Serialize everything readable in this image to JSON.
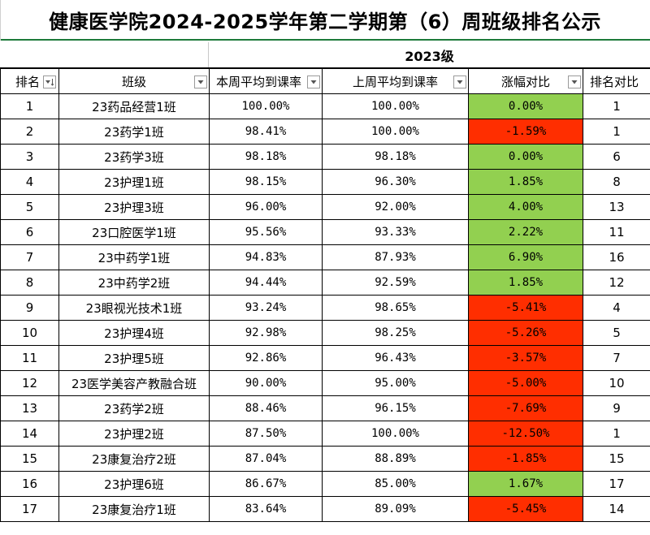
{
  "title": "健康医学院2024-2025学年第二学期第（6）周班级排名公示",
  "grade_label": "2023级",
  "colors": {
    "increase": "#92d050",
    "decrease": "#ff2e00",
    "border": "#000000",
    "title_underline": "#1d7a3a"
  },
  "headers": [
    "排名",
    "班级",
    "本周平均到课率",
    "上周平均到课率",
    "涨幅对比",
    "排名对比"
  ],
  "rows": [
    {
      "rank": "1",
      "class": "23药品经营1班",
      "this_week": "100.00%",
      "last_week": "100.00%",
      "change": "0.00%",
      "trend": "pos",
      "rank_cmp": "1"
    },
    {
      "rank": "2",
      "class": "23药学1班",
      "this_week": "98.41%",
      "last_week": "100.00%",
      "change": "-1.59%",
      "trend": "neg",
      "rank_cmp": "1"
    },
    {
      "rank": "3",
      "class": "23药学3班",
      "this_week": "98.18%",
      "last_week": "98.18%",
      "change": "0.00%",
      "trend": "pos",
      "rank_cmp": "6"
    },
    {
      "rank": "4",
      "class": "23护理1班",
      "this_week": "98.15%",
      "last_week": "96.30%",
      "change": "1.85%",
      "trend": "pos",
      "rank_cmp": "8"
    },
    {
      "rank": "5",
      "class": "23护理3班",
      "this_week": "96.00%",
      "last_week": "92.00%",
      "change": "4.00%",
      "trend": "pos",
      "rank_cmp": "13"
    },
    {
      "rank": "6",
      "class": "23口腔医学1班",
      "this_week": "95.56%",
      "last_week": "93.33%",
      "change": "2.22%",
      "trend": "pos",
      "rank_cmp": "11"
    },
    {
      "rank": "7",
      "class": "23中药学1班",
      "this_week": "94.83%",
      "last_week": "87.93%",
      "change": "6.90%",
      "trend": "pos",
      "rank_cmp": "16"
    },
    {
      "rank": "8",
      "class": "23中药学2班",
      "this_week": "94.44%",
      "last_week": "92.59%",
      "change": "1.85%",
      "trend": "pos",
      "rank_cmp": "12"
    },
    {
      "rank": "9",
      "class": "23眼视光技术1班",
      "this_week": "93.24%",
      "last_week": "98.65%",
      "change": "-5.41%",
      "trend": "neg",
      "rank_cmp": "4"
    },
    {
      "rank": "10",
      "class": "23护理4班",
      "this_week": "92.98%",
      "last_week": "98.25%",
      "change": "-5.26%",
      "trend": "neg",
      "rank_cmp": "5"
    },
    {
      "rank": "11",
      "class": "23护理5班",
      "this_week": "92.86%",
      "last_week": "96.43%",
      "change": "-3.57%",
      "trend": "neg",
      "rank_cmp": "7"
    },
    {
      "rank": "12",
      "class": "23医学美容产教融合班",
      "this_week": "90.00%",
      "last_week": "95.00%",
      "change": "-5.00%",
      "trend": "neg",
      "rank_cmp": "10"
    },
    {
      "rank": "13",
      "class": "23药学2班",
      "this_week": "88.46%",
      "last_week": "96.15%",
      "change": "-7.69%",
      "trend": "neg",
      "rank_cmp": "9"
    },
    {
      "rank": "14",
      "class": "23护理2班",
      "this_week": "87.50%",
      "last_week": "100.00%",
      "change": "-12.50%",
      "trend": "neg",
      "rank_cmp": "1"
    },
    {
      "rank": "15",
      "class": "23康复治疗2班",
      "this_week": "87.04%",
      "last_week": "88.89%",
      "change": "-1.85%",
      "trend": "neg",
      "rank_cmp": "15"
    },
    {
      "rank": "16",
      "class": "23护理6班",
      "this_week": "86.67%",
      "last_week": "85.00%",
      "change": "1.67%",
      "trend": "pos",
      "rank_cmp": "17"
    },
    {
      "rank": "17",
      "class": "23康复治疗1班",
      "this_week": "83.64%",
      "last_week": "89.09%",
      "change": "-5.45%",
      "trend": "neg",
      "rank_cmp": "14"
    }
  ]
}
